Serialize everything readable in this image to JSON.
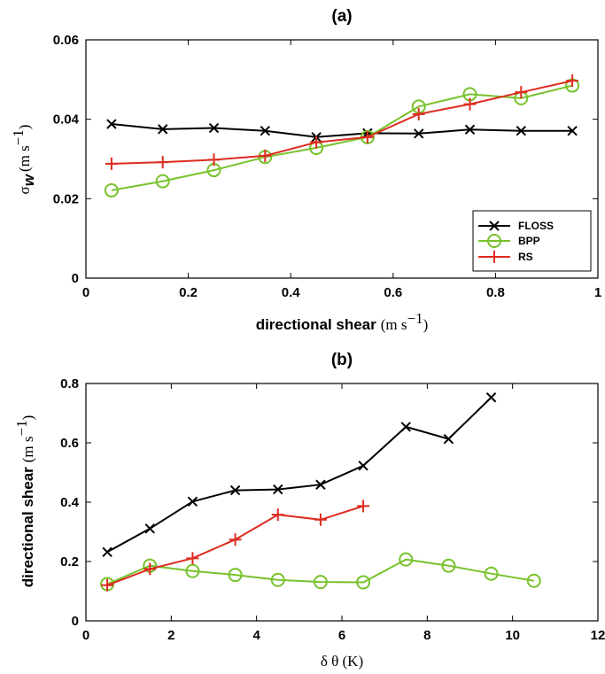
{
  "chart_data": [
    {
      "type": "line",
      "title": "(a)",
      "xlabel": {
        "main": "directional shear",
        "unit": "(m s",
        "unit_exp": "−1",
        "unit_close": ")"
      },
      "ylabel": {
        "symbol": "σ",
        "sub": "w",
        "unit": "(m s",
        "unit_exp": "−1",
        "unit_close": ")"
      },
      "xlim": [
        0,
        1
      ],
      "ylim": [
        0,
        0.06
      ],
      "xticks": [
        "0",
        "0.2",
        "0.4",
        "0.6",
        "0.8",
        "1"
      ],
      "yticks": [
        "0",
        "0.02",
        "0.04",
        "0.06"
      ],
      "legend": "bottom-right",
      "grid": false,
      "series": [
        {
          "name": "FLOSS",
          "color": "#000000",
          "marker": "x",
          "x": [
            0.05,
            0.15,
            0.25,
            0.35,
            0.45,
            0.55,
            0.65,
            0.75,
            0.85,
            0.95
          ],
          "y": [
            0.0388,
            0.0375,
            0.0378,
            0.0371,
            0.0355,
            0.0365,
            0.0364,
            0.0374,
            0.0371,
            0.0371
          ]
        },
        {
          "name": "BPP",
          "color": "#77c22b",
          "marker": "o",
          "x": [
            0.05,
            0.15,
            0.25,
            0.35,
            0.45,
            0.55,
            0.65,
            0.75,
            0.85,
            0.95
          ],
          "y": [
            0.0221,
            0.0244,
            0.0272,
            0.0305,
            0.0328,
            0.0355,
            0.0432,
            0.0463,
            0.0453,
            0.0485
          ]
        },
        {
          "name": "RS",
          "color": "#dd2b1f",
          "marker": "+",
          "x": [
            0.05,
            0.15,
            0.25,
            0.35,
            0.45,
            0.55,
            0.65,
            0.75,
            0.85,
            0.95
          ],
          "y": [
            0.0288,
            0.0292,
            0.0298,
            0.0308,
            0.0342,
            0.0355,
            0.0413,
            0.0438,
            0.0468,
            0.0497
          ]
        }
      ]
    },
    {
      "type": "line",
      "title": "(b)",
      "xlabel": {
        "main": "δ θ (K)"
      },
      "ylabel": {
        "main": "directional shear",
        "unit": "(m s",
        "unit_exp": "−1",
        "unit_close": ")"
      },
      "xlim": [
        0,
        12
      ],
      "ylim": [
        0,
        0.8
      ],
      "xticks": [
        "0",
        "2",
        "4",
        "6",
        "8",
        "10",
        "12"
      ],
      "yticks": [
        "0",
        "0.2",
        "0.4",
        "0.6",
        "0.8"
      ],
      "grid": false,
      "series": [
        {
          "color": "#000000",
          "marker": "x",
          "x": [
            0.5,
            1.5,
            2.5,
            3.5,
            4.5,
            5.5,
            6.5,
            7.5,
            8.5,
            9.5
          ],
          "y": [
            0.232,
            0.311,
            0.402,
            0.44,
            0.443,
            0.459,
            0.523,
            0.654,
            0.613,
            0.753
          ]
        },
        {
          "color": "#77c22b",
          "marker": "o",
          "x": [
            0.5,
            1.5,
            2.5,
            3.5,
            4.5,
            5.5,
            6.5,
            7.5,
            8.5,
            9.5,
            10.5
          ],
          "y": [
            0.124,
            0.186,
            0.168,
            0.155,
            0.138,
            0.131,
            0.13,
            0.207,
            0.186,
            0.159,
            0.135
          ]
        },
        {
          "color": "#dd2b1f",
          "marker": "+",
          "x": [
            0.5,
            1.5,
            2.5,
            3.5,
            4.5,
            5.5,
            6.5
          ],
          "y": [
            0.12,
            0.175,
            0.211,
            0.274,
            0.358,
            0.341,
            0.387
          ]
        }
      ]
    }
  ]
}
